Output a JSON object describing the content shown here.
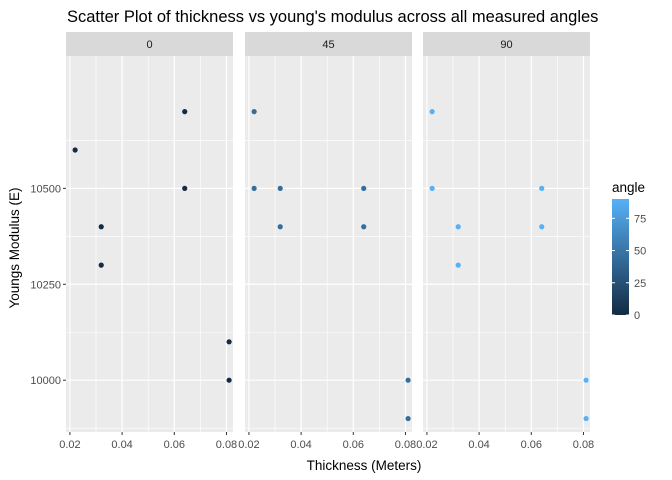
{
  "chart_data": {
    "type": "scatter",
    "title": "Scatter Plot of thickness vs young's modulus across all measured angles",
    "xlabel": "Thickness (Meters)",
    "ylabel": "Youngs Modulus (E)",
    "facet_variable": "angle",
    "facets": [
      "0",
      "45",
      "90"
    ],
    "xlim": [
      0.0185,
      0.0825
    ],
    "ylim": [
      9865,
      10845
    ],
    "x_ticks": [
      0.02,
      0.04,
      0.06,
      0.08
    ],
    "x_tick_labels": [
      "0.02",
      "0.04",
      "0.06",
      "0.08"
    ],
    "y_ticks": [
      10000,
      10250,
      10500
    ],
    "y_tick_labels": [
      "10000",
      "10250",
      "10500"
    ],
    "grid": true,
    "legend": {
      "title": "angle",
      "position": "right",
      "type": "colorbar",
      "range": [
        0,
        90
      ],
      "ticks": [
        0,
        25,
        50,
        75
      ],
      "tick_labels": [
        "0",
        "25",
        "50",
        "75"
      ],
      "low_color": "#132B43",
      "high_color": "#56B1F7"
    },
    "series": [
      {
        "angle": 0,
        "x": [
          0.022,
          0.032,
          0.032,
          0.064,
          0.064,
          0.081,
          0.081
        ],
        "y": [
          10600,
          10400,
          10300,
          10700,
          10500,
          10100,
          10000
        ]
      },
      {
        "angle": 45,
        "x": [
          0.022,
          0.022,
          0.032,
          0.032,
          0.064,
          0.064,
          0.081,
          0.081
        ],
        "y": [
          10700,
          10500,
          10500,
          10400,
          10500,
          10400,
          10000,
          9900
        ]
      },
      {
        "angle": 90,
        "x": [
          0.022,
          0.022,
          0.032,
          0.032,
          0.064,
          0.064,
          0.081,
          0.081
        ],
        "y": [
          10700,
          10500,
          10400,
          10300,
          10500,
          10400,
          10000,
          9900
        ]
      }
    ]
  }
}
